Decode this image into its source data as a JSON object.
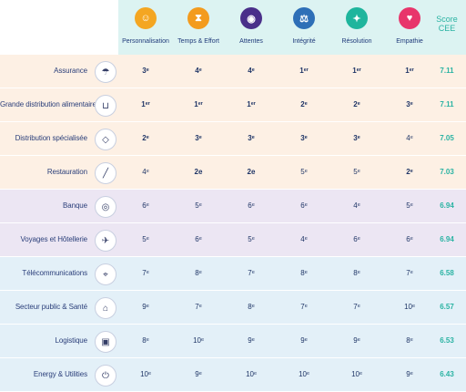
{
  "columns": [
    {
      "label": "Personnalisation",
      "icon": "person-icon",
      "color": "#f4a622"
    },
    {
      "label": "Temps & Effort",
      "icon": "hourglass-icon",
      "color": "#f39b1e"
    },
    {
      "label": "Attentes",
      "icon": "eye-icon",
      "color": "#4a2f8a"
    },
    {
      "label": "Intégrité",
      "icon": "scales-icon",
      "color": "#2e6fb7"
    },
    {
      "label": "Résolution",
      "icon": "lightbulb-icon",
      "color": "#1fb59d"
    },
    {
      "label": "Empathie",
      "icon": "heart-icon",
      "color": "#e8356b"
    }
  ],
  "score_header": "Score\nCEE",
  "rows": [
    {
      "name": "Assurance",
      "icon": "umbrella-icon",
      "group": "orange",
      "values": [
        "3ᵉ",
        "4ᵉ",
        "4ᵉ",
        "1ᵉʳ",
        "1ᵉʳ",
        "1ᵉʳ"
      ],
      "bold": [
        true,
        true,
        true,
        true,
        true,
        true
      ],
      "score": "7.11"
    },
    {
      "name": "Grande distribution alimentaire",
      "icon": "cart-icon",
      "group": "orange",
      "values": [
        "1ᵉʳ",
        "1ᵉʳ",
        "1ᵉʳ",
        "2ᵉ",
        "2ᵉ",
        "3ᵉ"
      ],
      "bold": [
        true,
        true,
        true,
        true,
        true,
        true
      ],
      "score": "7.11"
    },
    {
      "name": "Distribution spécialisée",
      "icon": "tag-icon",
      "group": "orange",
      "values": [
        "2ᵉ",
        "3ᵉ",
        "3ᵉ",
        "3ᵉ",
        "3ᵉ",
        "4ᵉ"
      ],
      "bold": [
        true,
        true,
        true,
        true,
        true,
        false
      ],
      "score": "7.05"
    },
    {
      "name": "Restauration",
      "icon": "knife-icon",
      "group": "orange",
      "values": [
        "4ᵉ",
        "2e",
        "2e",
        "5ᵉ",
        "5ᵉ",
        "2ᵉ"
      ],
      "bold": [
        false,
        true,
        true,
        false,
        false,
        true
      ],
      "score": "7.03"
    },
    {
      "name": "Banque",
      "icon": "coins-icon",
      "group": "purple",
      "values": [
        "6ᵉ",
        "5ᵉ",
        "6ᵉ",
        "6ᵉ",
        "4ᵉ",
        "5ᵉ"
      ],
      "bold": [
        false,
        false,
        false,
        false,
        false,
        false
      ],
      "score": "6.94"
    },
    {
      "name": "Voyages et Hôtellerie",
      "icon": "plane-icon",
      "group": "purple",
      "values": [
        "5ᵉ",
        "6ᵉ",
        "5ᵉ",
        "4ᵉ",
        "6ᵉ",
        "6ᵉ"
      ],
      "bold": [
        false,
        false,
        false,
        false,
        false,
        false
      ],
      "score": "6.94"
    },
    {
      "name": "Télécommunications",
      "icon": "antenna-icon",
      "group": "blue",
      "values": [
        "7ᵉ",
        "8ᵉ",
        "7ᵉ",
        "8ᵉ",
        "8ᵉ",
        "7ᵉ"
      ],
      "bold": [
        false,
        false,
        false,
        false,
        false,
        false
      ],
      "score": "6.58"
    },
    {
      "name": "Secteur public & Santé",
      "icon": "building-icon",
      "group": "blue",
      "values": [
        "9ᵉ",
        "7ᵉ",
        "8ᵉ",
        "7ᵉ",
        "7ᵉ",
        "10ᵉ"
      ],
      "bold": [
        false,
        false,
        false,
        false,
        false,
        false
      ],
      "score": "6.57"
    },
    {
      "name": "Logistique",
      "icon": "box-icon",
      "group": "blue",
      "values": [
        "8ᵉ",
        "10ᵉ",
        "9ᵉ",
        "9ᵉ",
        "9ᵉ",
        "8ᵉ"
      ],
      "bold": [
        false,
        false,
        false,
        false,
        false,
        false
      ],
      "score": "6.53"
    },
    {
      "name": "Energy & Utilities",
      "icon": "plug-icon",
      "group": "blue",
      "values": [
        "10ᵉ",
        "9ᵉ",
        "10ᵉ",
        "10ᵉ",
        "10ᵉ",
        "9ᵉ"
      ],
      "bold": [
        false,
        false,
        false,
        false,
        false,
        false
      ],
      "score": "6.43"
    }
  ],
  "group_colors": {
    "orange": "#fdf0e4",
    "purple": "#ece6f3",
    "blue": "#e3f0f8"
  }
}
